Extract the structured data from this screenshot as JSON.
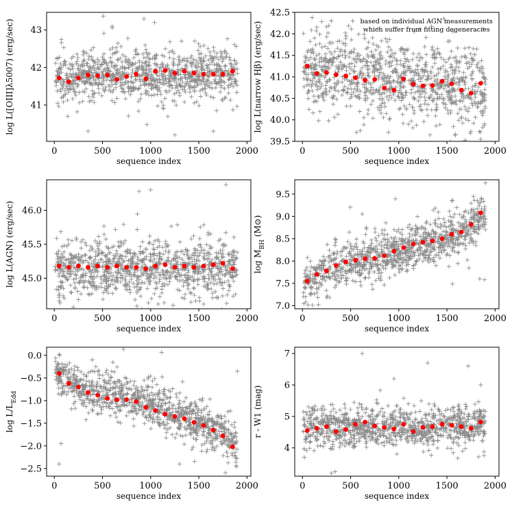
{
  "figure": {
    "background": "#ffffff",
    "scatter_color": "#000000",
    "mean_color": "#ff0000"
  },
  "chart_data": [
    {
      "id": "oiii",
      "type": "scatter",
      "xlabel": "sequence index",
      "ylabel": "log L([OIII]λ5007) (erg/sec)",
      "xlim": [
        -80,
        2040
      ],
      "ylim": [
        40.03,
        43.47
      ],
      "xticks": [
        0,
        500,
        1000,
        1500,
        2000
      ],
      "yticks": [
        41,
        42,
        43
      ],
      "ytick_decimals": 0,
      "annotation": [],
      "scatter_trend": [
        [
          10,
          41.75
        ],
        [
          2000,
          41.85
        ]
      ],
      "scatter_spread": 0.32,
      "outliers": [
        [
          930,
          43.3
        ],
        [
          1040,
          43.2
        ],
        [
          350,
          40.3
        ],
        [
          1250,
          40.2
        ],
        [
          600,
          43.1
        ],
        [
          1650,
          40.3
        ],
        [
          140,
          40.7
        ]
      ],
      "binned_means": {
        "x": [
          50,
          150,
          250,
          350,
          450,
          550,
          650,
          750,
          850,
          950,
          1050,
          1150,
          1250,
          1350,
          1450,
          1550,
          1650,
          1750,
          1850
        ],
        "y": [
          41.72,
          41.62,
          41.72,
          41.8,
          41.78,
          41.8,
          41.68,
          41.76,
          41.82,
          41.7,
          41.9,
          41.92,
          41.85,
          41.9,
          41.85,
          41.82,
          41.82,
          41.82,
          41.9
        ]
      }
    },
    {
      "id": "hbeta",
      "type": "scatter",
      "xlabel": "sequence index",
      "ylabel": "log L(narrow Hβ) (erg/sec)",
      "xlim": [
        -80,
        2040
      ],
      "ylim": [
        39.5,
        42.5
      ],
      "xticks": [
        0,
        500,
        1000,
        1500,
        2000
      ],
      "yticks": [
        39.5,
        40.0,
        40.5,
        41.0,
        41.5,
        42.0,
        42.5
      ],
      "ytick_decimals": 1,
      "annotation": [
        "based on individual AGN measurements",
        "which suffer from fitting degeneracies"
      ],
      "scatter_trend": [
        [
          10,
          41.2
        ],
        [
          2000,
          40.7
        ]
      ],
      "scatter_spread": 0.45,
      "outliers": [
        [
          100,
          42.38
        ],
        [
          1700,
          39.5
        ],
        [
          1850,
          39.55
        ],
        [
          600,
          39.75
        ],
        [
          300,
          42.3
        ]
      ],
      "binned_means": {
        "x": [
          50,
          150,
          250,
          350,
          450,
          550,
          650,
          750,
          850,
          950,
          1050,
          1150,
          1250,
          1350,
          1450,
          1550,
          1650,
          1750,
          1850
        ],
        "y": [
          41.25,
          41.08,
          41.1,
          41.05,
          41.02,
          40.98,
          40.92,
          40.94,
          40.74,
          40.69,
          40.95,
          40.83,
          40.79,
          40.8,
          40.9,
          40.84,
          40.69,
          40.62,
          40.85
        ]
      }
    },
    {
      "id": "lagn",
      "type": "scatter",
      "xlabel": "sequence index",
      "ylabel": "log L(AGN) (erg/sec)",
      "xlim": [
        -80,
        2040
      ],
      "ylim": [
        44.55,
        46.45
      ],
      "xticks": [
        0,
        500,
        1000,
        1500,
        2000
      ],
      "yticks": [
        45.0,
        45.5,
        46.0
      ],
      "ytick_decimals": 1,
      "annotation": [],
      "scatter_trend": [
        [
          10,
          45.15
        ],
        [
          2000,
          45.15
        ]
      ],
      "scatter_spread": 0.2,
      "outliers": [
        [
          1780,
          46.38
        ],
        [
          880,
          46.28
        ],
        [
          1000,
          46.3
        ],
        [
          1550,
          44.62
        ],
        [
          50,
          44.72
        ]
      ],
      "binned_means": {
        "x": [
          50,
          150,
          250,
          350,
          450,
          550,
          650,
          750,
          850,
          950,
          1050,
          1150,
          1250,
          1350,
          1450,
          1550,
          1650,
          1750,
          1850
        ],
        "y": [
          45.18,
          45.16,
          45.18,
          45.16,
          45.18,
          45.16,
          45.18,
          45.16,
          45.16,
          45.14,
          45.18,
          45.2,
          45.16,
          45.18,
          45.16,
          45.18,
          45.2,
          45.22,
          45.14
        ]
      }
    },
    {
      "id": "mbh",
      "type": "scatter",
      "xlabel": "sequence index",
      "ylabel": "log M_BH (M⊙)",
      "xlim": [
        -80,
        2040
      ],
      "ylim": [
        6.93,
        9.82
      ],
      "xticks": [
        0,
        500,
        1000,
        1500,
        2000
      ],
      "yticks": [
        7.0,
        7.5,
        8.0,
        8.5,
        9.0,
        9.5
      ],
      "ytick_decimals": 1,
      "annotation": [],
      "scatter_trend": [
        [
          10,
          7.5
        ],
        [
          400,
          7.95
        ],
        [
          1000,
          8.2
        ],
        [
          1600,
          8.6
        ],
        [
          2000,
          9.2
        ]
      ],
      "scatter_spread": 0.24,
      "outliers": [
        [
          1900,
          9.75
        ],
        [
          1890,
          7.58
        ],
        [
          1840,
          7.6
        ],
        [
          1550,
          9.35
        ],
        [
          620,
          9.05
        ]
      ],
      "binned_means": {
        "x": [
          50,
          150,
          250,
          350,
          450,
          550,
          650,
          750,
          850,
          950,
          1050,
          1150,
          1250,
          1350,
          1450,
          1550,
          1650,
          1750,
          1850
        ],
        "y": [
          7.55,
          7.7,
          7.78,
          7.9,
          7.98,
          8.02,
          8.05,
          8.06,
          8.12,
          8.22,
          8.3,
          8.38,
          8.42,
          8.45,
          8.5,
          8.6,
          8.65,
          8.82,
          9.08
        ]
      }
    },
    {
      "id": "eddington",
      "type": "scatter",
      "xlabel": "sequence index",
      "ylabel": "log L/L_Edd",
      "xlim": [
        -80,
        2040
      ],
      "ylim": [
        -2.67,
        0.18
      ],
      "xticks": [
        0,
        500,
        1000,
        1500,
        2000
      ],
      "yticks": [
        0.0,
        -0.5,
        -1.0,
        -1.5,
        -2.0,
        -2.5
      ],
      "ytick_decimals": 1,
      "annotation": [],
      "scatter_trend": [
        [
          10,
          -0.35
        ],
        [
          300,
          -0.75
        ],
        [
          1000,
          -1.1
        ],
        [
          1600,
          -1.55
        ],
        [
          2000,
          -2.15
        ]
      ],
      "scatter_spread": 0.22,
      "outliers": [
        [
          50,
          -2.4
        ],
        [
          70,
          -1.95
        ],
        [
          1900,
          -0.35
        ],
        [
          1300,
          -2.4
        ]
      ],
      "binned_means": {
        "x": [
          50,
          150,
          250,
          350,
          450,
          550,
          650,
          750,
          850,
          950,
          1050,
          1150,
          1250,
          1350,
          1450,
          1550,
          1650,
          1750,
          1850
        ],
        "y": [
          -0.4,
          -0.62,
          -0.7,
          -0.82,
          -0.88,
          -0.95,
          -0.98,
          -0.98,
          -1.02,
          -1.15,
          -1.22,
          -1.3,
          -1.35,
          -1.4,
          -1.48,
          -1.55,
          -1.65,
          -1.78,
          -2.02
        ]
      }
    },
    {
      "id": "color",
      "type": "scatter",
      "xlabel": "sequence index",
      "ylabel": "r - W1 (mag)",
      "xlim": [
        -80,
        2040
      ],
      "ylim": [
        3.1,
        7.2
      ],
      "xticks": [
        0,
        500,
        1000,
        1500,
        2000
      ],
      "yticks": [
        4,
        5,
        6,
        7
      ],
      "ytick_decimals": 0,
      "annotation": [],
      "scatter_trend": [
        [
          10,
          4.65
        ],
        [
          2000,
          4.65
        ]
      ],
      "scatter_spread": 0.32,
      "outliers": [
        [
          620,
          7.0
        ],
        [
          1300,
          6.7
        ],
        [
          1720,
          6.6
        ],
        [
          1850,
          6.0
        ],
        [
          950,
          6.2
        ],
        [
          20,
          3.7
        ],
        [
          300,
          3.2
        ]
      ],
      "binned_means": {
        "x": [
          50,
          150,
          250,
          350,
          450,
          550,
          650,
          750,
          850,
          950,
          1050,
          1150,
          1250,
          1350,
          1450,
          1550,
          1650,
          1750,
          1850
        ],
        "y": [
          4.55,
          4.62,
          4.68,
          4.52,
          4.58,
          4.75,
          4.82,
          4.7,
          4.65,
          4.6,
          4.75,
          4.52,
          4.65,
          4.68,
          4.75,
          4.72,
          4.68,
          4.62,
          4.82
        ]
      }
    }
  ]
}
